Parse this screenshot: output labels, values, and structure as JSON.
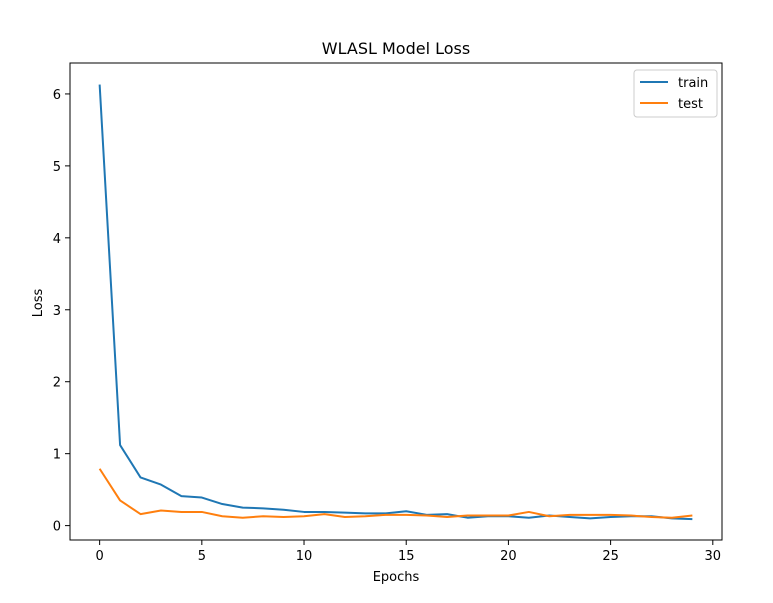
{
  "chart_data": {
    "type": "line",
    "title": "WLASL Model Loss",
    "xlabel": "Epochs",
    "ylabel": "Loss",
    "xlim": [
      -1.45,
      30.45
    ],
    "ylim": [
      -0.2,
      6.43
    ],
    "xticks": [
      0,
      5,
      10,
      15,
      20,
      25,
      30
    ],
    "yticks": [
      0,
      1,
      2,
      3,
      4,
      5,
      6
    ],
    "grid": false,
    "legend_position": "top-right",
    "x": [
      0,
      1,
      2,
      3,
      4,
      5,
      6,
      7,
      8,
      9,
      10,
      11,
      12,
      13,
      14,
      15,
      16,
      17,
      18,
      19,
      20,
      21,
      22,
      23,
      24,
      25,
      26,
      27,
      28,
      29
    ],
    "series": [
      {
        "name": "train",
        "color": "#1f77b4",
        "values": [
          6.13,
          1.12,
          0.67,
          0.57,
          0.41,
          0.39,
          0.3,
          0.25,
          0.24,
          0.22,
          0.19,
          0.19,
          0.18,
          0.17,
          0.17,
          0.2,
          0.15,
          0.16,
          0.11,
          0.13,
          0.13,
          0.11,
          0.14,
          0.12,
          0.1,
          0.12,
          0.13,
          0.13,
          0.1,
          0.09
        ]
      },
      {
        "name": "test",
        "color": "#ff7f0e",
        "values": [
          0.79,
          0.35,
          0.16,
          0.21,
          0.19,
          0.19,
          0.13,
          0.11,
          0.13,
          0.12,
          0.13,
          0.16,
          0.12,
          0.13,
          0.15,
          0.15,
          0.14,
          0.12,
          0.14,
          0.14,
          0.14,
          0.19,
          0.13,
          0.15,
          0.15,
          0.15,
          0.14,
          0.12,
          0.11,
          0.14
        ]
      }
    ]
  }
}
